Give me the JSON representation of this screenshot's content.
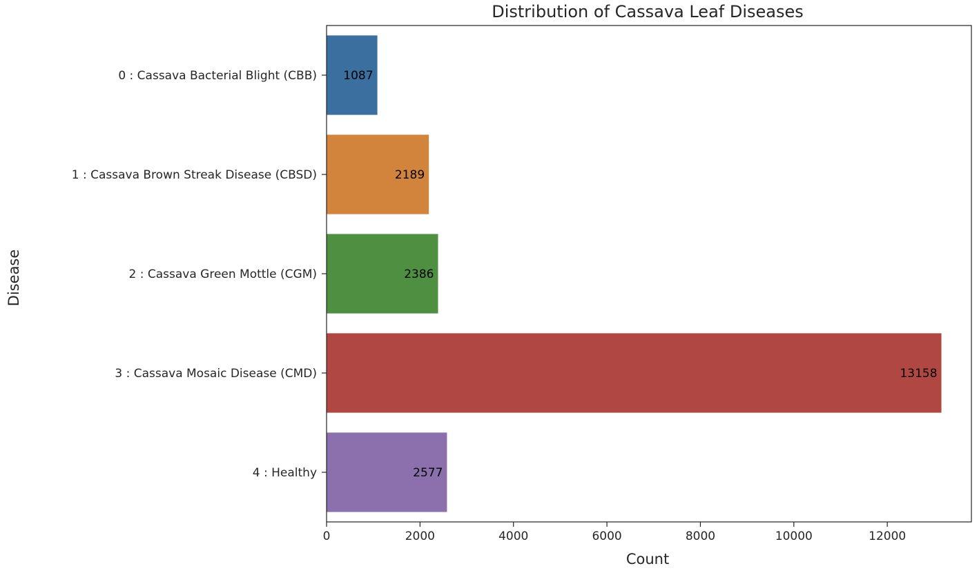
{
  "chart_data": {
    "type": "bar",
    "orientation": "horizontal",
    "title": "Distribution of Cassava Leaf Diseases",
    "xlabel": "Count",
    "ylabel": "Disease",
    "categories": [
      "0 : Cassava Bacterial Blight (CBB)",
      "1 : Cassava Brown Streak Disease (CBSD)",
      "2 : Cassava Green Mottle (CGM)",
      "3 : Cassava Mosaic Disease (CMD)",
      "4 : Healthy"
    ],
    "values": [
      1087,
      2189,
      2386,
      13158,
      2577
    ],
    "data_labels": [
      "1087",
      "2189",
      "2386",
      "13158",
      "2577"
    ],
    "colors": [
      "#3a6f9f",
      "#d2843d",
      "#4e8f42",
      "#b04743",
      "#8c70ad"
    ],
    "xlim": [
      0,
      13800
    ],
    "xticks": [
      0,
      2000,
      4000,
      6000,
      8000,
      10000,
      12000
    ],
    "xtick_labels": [
      "0",
      "2000",
      "4000",
      "6000",
      "8000",
      "10000",
      "12000"
    ],
    "grid": false,
    "legend": "none"
  }
}
